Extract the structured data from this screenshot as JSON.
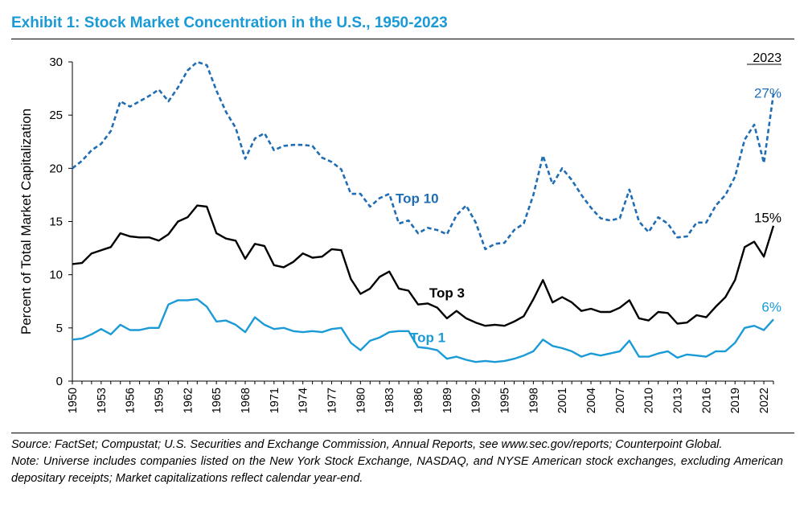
{
  "title": "Exhibit 1: Stock Market Concentration in the U.S., 1950-2023",
  "source": "Source: FactSet; Compustat; U.S. Securities and Exchange Commission, Annual Reports, see www.sec.gov/reports; Counterpoint Global.",
  "note": "Note: Universe includes companies listed on the New York Stock Exchange, NASDAQ, and NYSE American stock exchanges, excluding American depositary receipts; Market capitalizations reflect calendar year-end.",
  "colors": {
    "title": "#1a9ad7",
    "top10": "#1f6db4",
    "top3": "#000000",
    "top1": "#1a9ad7"
  },
  "chart_data": {
    "type": "line",
    "ylabel": "Percent of Total Market Capitalization",
    "xlabel": "",
    "ylim": [
      0,
      30
    ],
    "yticks": [
      0,
      5,
      10,
      15,
      20,
      25,
      30
    ],
    "x": [
      1950,
      1951,
      1952,
      1953,
      1954,
      1955,
      1956,
      1957,
      1958,
      1959,
      1960,
      1961,
      1962,
      1963,
      1964,
      1965,
      1966,
      1967,
      1968,
      1969,
      1970,
      1971,
      1972,
      1973,
      1974,
      1975,
      1976,
      1977,
      1978,
      1979,
      1980,
      1981,
      1982,
      1983,
      1984,
      1985,
      1986,
      1987,
      1988,
      1989,
      1990,
      1991,
      1992,
      1993,
      1994,
      1995,
      1996,
      1997,
      1998,
      1999,
      2000,
      2001,
      2002,
      2003,
      2004,
      2005,
      2006,
      2007,
      2008,
      2009,
      2010,
      2011,
      2012,
      2013,
      2014,
      2015,
      2016,
      2017,
      2018,
      2019,
      2020,
      2021,
      2022,
      2023
    ],
    "xtick_labels": [
      "1950",
      "1953",
      "1956",
      "1959",
      "1962",
      "1965",
      "1968",
      "1971",
      "1974",
      "1977",
      "1980",
      "1983",
      "1986",
      "1989",
      "1992",
      "1995",
      "1998",
      "2001",
      "2004",
      "2007",
      "2010",
      "2013",
      "2016",
      "2019",
      "2022"
    ],
    "grid": false,
    "series": [
      {
        "name": "Top 10",
        "style": "dashed",
        "values": [
          20.0,
          20.7,
          21.7,
          22.3,
          23.5,
          26.3,
          25.8,
          26.3,
          26.8,
          27.4,
          26.3,
          27.6,
          29.2,
          30.0,
          29.7,
          27.3,
          25.3,
          23.8,
          20.9,
          22.8,
          23.3,
          21.7,
          22.1,
          22.2,
          22.2,
          22.1,
          21.0,
          20.6,
          19.9,
          17.6,
          17.6,
          16.4,
          17.2,
          17.6,
          14.8,
          15.1,
          13.9,
          14.4,
          14.2,
          13.8,
          15.6,
          16.5,
          14.9,
          12.4,
          12.9,
          13.0,
          14.2,
          14.8,
          17.5,
          21.2,
          18.5,
          20.0,
          18.9,
          17.5,
          16.3,
          15.3,
          15.1,
          15.3,
          18.0,
          15.0,
          14.0,
          15.4,
          14.8,
          13.5,
          13.6,
          14.9,
          14.9,
          16.5,
          17.5,
          19.2,
          22.7,
          24.1,
          20.5,
          27.0
        ]
      },
      {
        "name": "Top 3",
        "style": "solid",
        "values": [
          11.0,
          11.1,
          12.0,
          12.3,
          12.6,
          13.9,
          13.6,
          13.5,
          13.5,
          13.2,
          13.8,
          15.0,
          15.4,
          16.5,
          16.4,
          13.9,
          13.4,
          13.2,
          11.5,
          12.9,
          12.7,
          10.9,
          10.7,
          11.2,
          12.0,
          11.6,
          11.7,
          12.4,
          12.3,
          9.6,
          8.2,
          8.7,
          9.8,
          10.3,
          8.7,
          8.5,
          7.2,
          7.3,
          6.9,
          5.9,
          6.6,
          5.9,
          5.5,
          5.2,
          5.3,
          5.2,
          5.6,
          6.1,
          7.7,
          9.5,
          7.4,
          7.9,
          7.4,
          6.6,
          6.8,
          6.5,
          6.5,
          6.9,
          7.6,
          5.9,
          5.7,
          6.5,
          6.4,
          5.4,
          5.5,
          6.2,
          6.0,
          7.0,
          7.9,
          9.5,
          12.6,
          13.1,
          11.7,
          14.6
        ]
      },
      {
        "name": "Top 1",
        "style": "solid",
        "values": [
          3.9,
          4.0,
          4.4,
          4.9,
          4.4,
          5.3,
          4.8,
          4.8,
          5.0,
          5.0,
          7.2,
          7.6,
          7.6,
          7.7,
          7.0,
          5.6,
          5.7,
          5.3,
          4.6,
          6.0,
          5.3,
          4.9,
          5.0,
          4.7,
          4.6,
          4.7,
          4.6,
          4.9,
          5.0,
          3.6,
          2.9,
          3.8,
          4.1,
          4.6,
          4.7,
          4.7,
          3.2,
          3.1,
          2.9,
          2.1,
          2.3,
          2.0,
          1.8,
          1.9,
          1.8,
          1.9,
          2.1,
          2.4,
          2.8,
          3.9,
          3.3,
          3.1,
          2.8,
          2.3,
          2.6,
          2.4,
          2.6,
          2.8,
          3.8,
          2.3,
          2.3,
          2.6,
          2.8,
          2.2,
          2.5,
          2.4,
          2.3,
          2.8,
          2.8,
          3.6,
          5.0,
          5.2,
          4.8,
          5.8
        ]
      }
    ],
    "annotations": [
      {
        "text": "Top 10",
        "series": "Top 10",
        "x": 1986,
        "y": 17.2
      },
      {
        "text": "Top 3",
        "series": "Top 3",
        "x": 1988,
        "y": 8.3
      },
      {
        "text": "Top 1",
        "series": "Top 1",
        "x": 1987,
        "y": 4.1
      },
      {
        "text": "2023",
        "x": 2023,
        "y": 30
      },
      {
        "text": "27%",
        "series": "Top 10",
        "x": 2023,
        "y": 27
      },
      {
        "text": "15%",
        "series": "Top 3",
        "x": 2023,
        "y": 15.3
      },
      {
        "text": "6%",
        "series": "Top 1",
        "x": 2023,
        "y": 6.9
      }
    ]
  }
}
